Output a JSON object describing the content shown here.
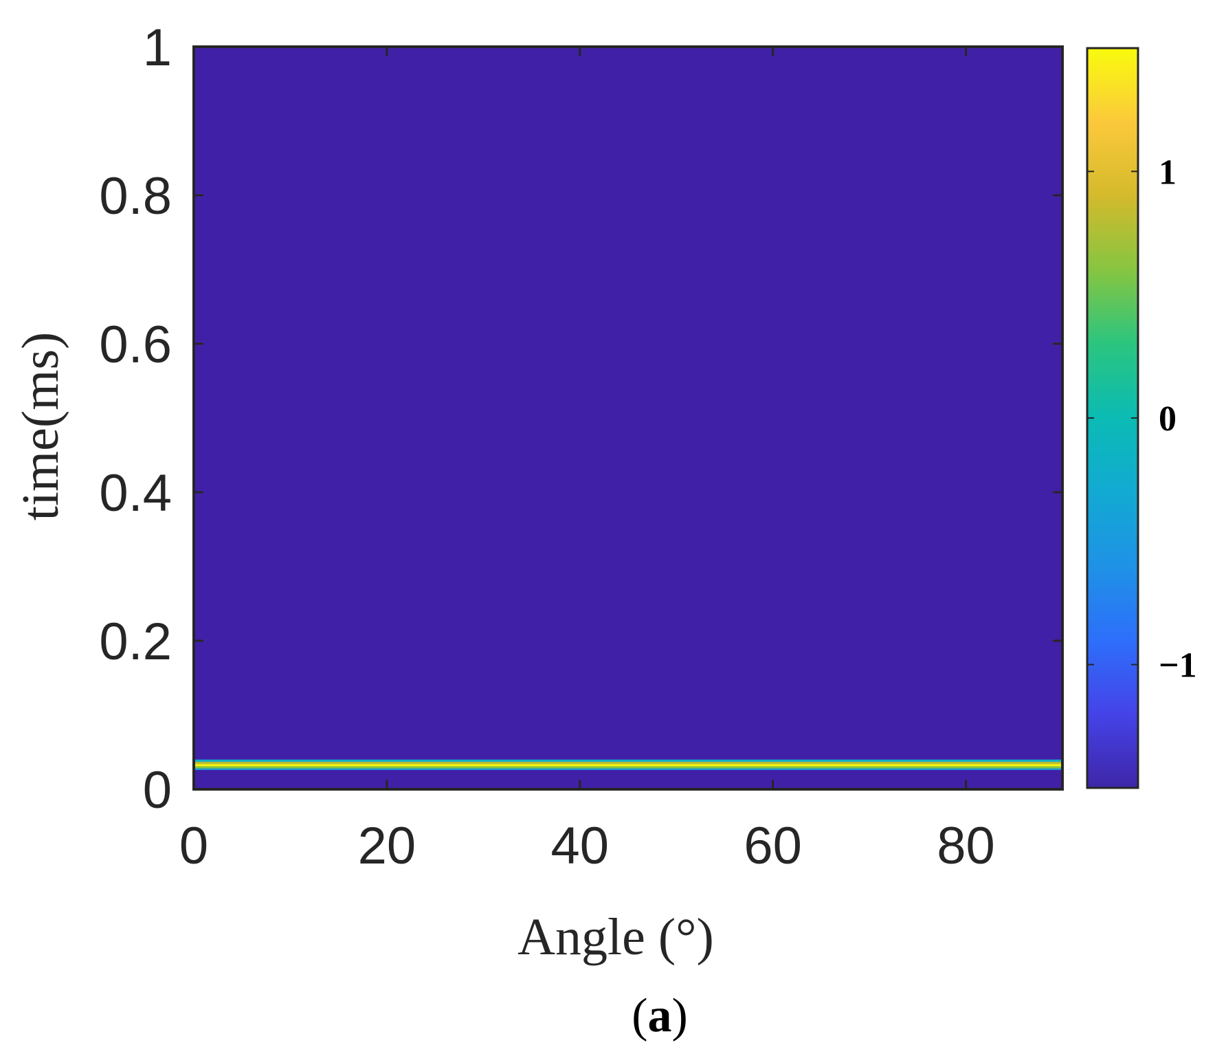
{
  "chart_data": {
    "type": "heatmap",
    "xlabel": "Angle (°)",
    "ylabel": "time(ms)",
    "xlim": [
      0,
      90
    ],
    "ylim": [
      0,
      1
    ],
    "xticks": [
      0,
      20,
      40,
      60,
      80
    ],
    "xtick_labels": [
      "0",
      "20",
      "40",
      "60",
      "80"
    ],
    "yticks": [
      0,
      0.2,
      0.4,
      0.6,
      0.8,
      1
    ],
    "ytick_labels": [
      "0",
      "0.2",
      "0.4",
      "0.6",
      "0.8",
      "1"
    ],
    "grid": false,
    "background_value": -1.5,
    "bands": [
      {
        "t_start": 0.037,
        "t_end": 0.04,
        "value": -0.2
      },
      {
        "t_start": 0.034,
        "t_end": 0.037,
        "value": 0.8
      },
      {
        "t_start": 0.031,
        "t_end": 0.034,
        "value": 1.5
      },
      {
        "t_start": 0.028,
        "t_end": 0.031,
        "value": 0.6
      },
      {
        "t_start": 0.026,
        "t_end": 0.028,
        "value": -0.4
      }
    ],
    "colorbar": {
      "colormap": "parula",
      "range": [
        -1.5,
        1.5
      ],
      "ticks": [
        -1,
        0,
        1
      ],
      "tick_labels": [
        "−1",
        "0",
        "1"
      ]
    }
  },
  "colors": {
    "background_fill": "#4120a8",
    "colormap_stops": [
      {
        "offset": 0.0,
        "color": "#3e26a8"
      },
      {
        "offset": 0.1,
        "color": "#4543e8"
      },
      {
        "offset": 0.2,
        "color": "#2d6ffa"
      },
      {
        "offset": 0.3,
        "color": "#1f92e6"
      },
      {
        "offset": 0.4,
        "color": "#12aad2"
      },
      {
        "offset": 0.5,
        "color": "#0bbbb4"
      },
      {
        "offset": 0.6,
        "color": "#2bc57f"
      },
      {
        "offset": 0.7,
        "color": "#86c541"
      },
      {
        "offset": 0.8,
        "color": "#d4ba2c"
      },
      {
        "offset": 0.9,
        "color": "#fbc93b"
      },
      {
        "offset": 1.0,
        "color": "#f9fb0e"
      }
    ]
  },
  "panel_label": {
    "open": "(",
    "letter": "a",
    "close": ")"
  }
}
